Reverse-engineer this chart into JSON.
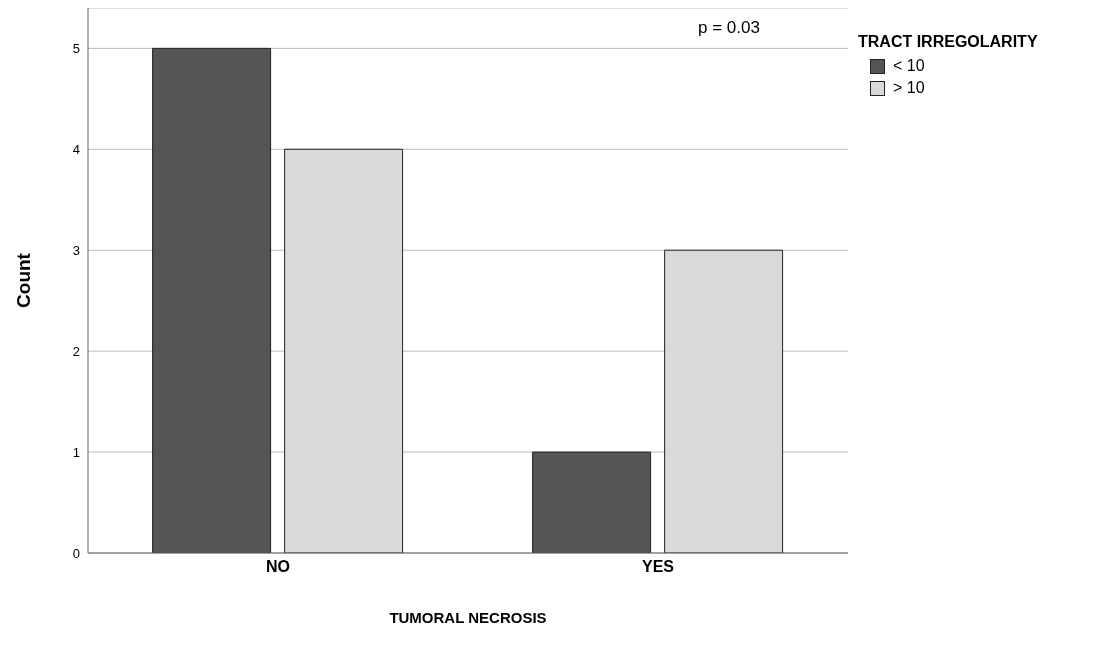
{
  "chart_data": {
    "type": "bar",
    "xlabel": "TUMORAL NECROSIS",
    "ylabel": "Count",
    "legend_title": "TRACT IRREGOLARITY",
    "categories": [
      "NO",
      "YES"
    ],
    "series": [
      {
        "name": "< 10",
        "color": "#555555",
        "values": [
          5,
          1
        ]
      },
      {
        "name": "> 10",
        "color": "#d9d9d9",
        "values": [
          4,
          3
        ]
      }
    ],
    "ylim": [
      0,
      5.4
    ],
    "yticks": [
      0,
      1,
      2,
      3,
      4,
      5
    ],
    "grid": "y",
    "legend": "top right",
    "annotations": [
      "p = 0.03"
    ]
  }
}
